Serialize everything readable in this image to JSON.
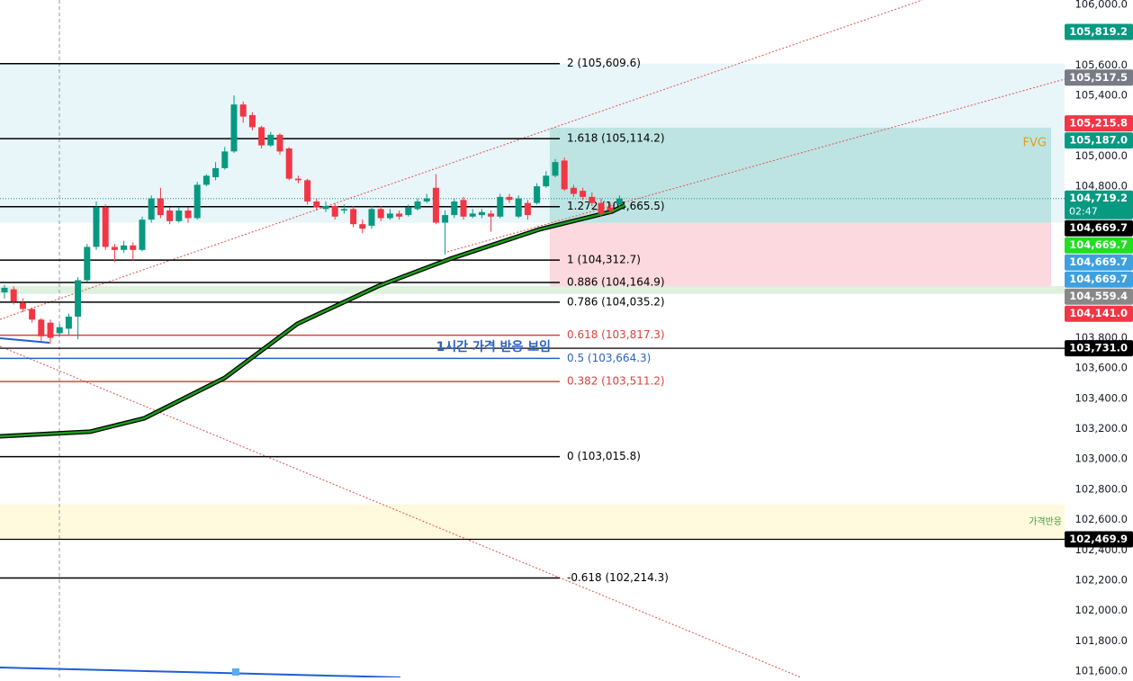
{
  "chart_data": {
    "type": "candlestick",
    "up_color": "#089981",
    "down_color": "#f23645",
    "ylim": [
      101600,
      106000
    ],
    "yticks": [
      {
        "value": 106000,
        "label": "106,000.0"
      },
      {
        "value": 105600,
        "label": "105,600.0"
      },
      {
        "value": 105400,
        "label": "105,400.0"
      },
      {
        "value": 105000,
        "label": "105,000.0"
      },
      {
        "value": 104800,
        "label": "104,800.0"
      },
      {
        "value": 103800,
        "label": "103,800.0"
      },
      {
        "value": 103600,
        "label": "103,600.0"
      },
      {
        "value": 103400,
        "label": "103,400.0"
      },
      {
        "value": 103200,
        "label": "103,200.0"
      },
      {
        "value": 103000,
        "label": "103,000.0"
      },
      {
        "value": 102800,
        "label": "102,800.0"
      },
      {
        "value": 102600,
        "label": "102,600.0"
      },
      {
        "value": 102400,
        "label": "102,400.0"
      },
      {
        "value": 102200,
        "label": "102,200.0"
      },
      {
        "value": 102000,
        "label": "102,000.0"
      },
      {
        "value": 101800,
        "label": "101,800.0"
      },
      {
        "value": 101600,
        "label": "101,600.0"
      }
    ],
    "candles": {
      "open": [
        104100,
        104120,
        104030,
        103990,
        103920,
        103900,
        103830,
        103860,
        103940,
        104180,
        104400,
        104660,
        104400,
        104380,
        104410,
        104380,
        104580,
        104720,
        104640,
        104570,
        104640,
        104590,
        104810,
        104860,
        104920,
        105030,
        105340,
        105270,
        105190,
        105070,
        105140,
        105050,
        104850,
        104840,
        104700,
        104650,
        104670,
        104640,
        104650,
        104550,
        104540,
        104650,
        104590,
        104620,
        104610,
        104650,
        104700,
        104790,
        104560,
        104610,
        104710,
        104600,
        104610,
        104620,
        104600,
        104730,
        104600,
        104690,
        104690,
        104800,
        104870,
        104970,
        104790,
        104770,
        104730,
        104690,
        104660,
        104680
      ],
      "high": [
        104150,
        104140,
        104060,
        104000,
        103930,
        103920,
        103890,
        103960,
        104200,
        104420,
        104700,
        104680,
        104420,
        104440,
        104430,
        104600,
        104740,
        104790,
        104660,
        104660,
        104660,
        104830,
        104880,
        104960,
        105060,
        105400,
        105360,
        105290,
        105200,
        105160,
        105150,
        105060,
        104870,
        104850,
        104720,
        104700,
        104690,
        104680,
        104670,
        104580,
        104670,
        104670,
        104650,
        104640,
        104680,
        104720,
        104750,
        104880,
        104640,
        104720,
        104730,
        104650,
        104650,
        104640,
        104750,
        104750,
        104740,
        104710,
        104820,
        104900,
        104980,
        104990,
        104810,
        104790,
        104760,
        104720,
        104690,
        104740
      ],
      "low": [
        104060,
        104020,
        103970,
        103900,
        103780,
        103760,
        103810,
        103820,
        103790,
        104170,
        104380,
        104380,
        104300,
        104360,
        104310,
        104370,
        104560,
        104590,
        104550,
        104560,
        104560,
        104580,
        104800,
        104840,
        104910,
        105020,
        105220,
        105170,
        105050,
        105060,
        105010,
        104840,
        104820,
        104680,
        104640,
        104630,
        104580,
        104620,
        104530,
        104490,
        104520,
        104570,
        104580,
        104580,
        104600,
        104640,
        104690,
        104550,
        104350,
        104590,
        104580,
        104590,
        104590,
        104500,
        104590,
        104690,
        104590,
        104580,
        104680,
        104790,
        104860,
        104770,
        104730,
        104710,
        104670,
        104600,
        104620,
        104660
      ],
      "close": [
        104130,
        104040,
        103990,
        103920,
        103810,
        103800,
        103870,
        103940,
        104180,
        104400,
        104660,
        104400,
        104380,
        104410,
        104380,
        104580,
        104720,
        104610,
        104570,
        104640,
        104590,
        104810,
        104870,
        104920,
        105030,
        105340,
        105260,
        105190,
        105070,
        105140,
        105030,
        104850,
        104840,
        104700,
        104660,
        104670,
        104600,
        104650,
        104550,
        104520,
        104650,
        104590,
        104620,
        104600,
        104660,
        104700,
        104720,
        104560,
        104610,
        104700,
        104600,
        104620,
        104630,
        104600,
        104730,
        104710,
        104720,
        104610,
        104800,
        104870,
        104960,
        104780,
        104750,
        104730,
        104690,
        104620,
        104640,
        104719.2
      ]
    },
    "ema": {
      "color": "#1a9e1a",
      "x": [
        -0.5,
        9.3,
        15.2,
        24,
        31.9,
        40.7,
        48.5,
        58.3,
        66.2,
        67.6
      ],
      "values": [
        103150,
        103180,
        103268,
        103536,
        103892,
        104141,
        104320,
        104516,
        104634,
        104676
      ]
    },
    "zones": [
      {
        "top": 105609.6,
        "bottom": 104559.4,
        "color": "rgba(178,225,240,0.3)"
      },
      {
        "top": 105187.0,
        "bottom": 104559.4,
        "color": "rgba(120,200,185,0.45)",
        "start": 59.4,
        "label": "FVG",
        "label_color": "#d9a020"
      },
      {
        "top": 104559.4,
        "bottom": 104141.0,
        "color": "rgba(247,180,190,0.5)",
        "start": 59.4
      },
      {
        "top": 104141.0,
        "bottom": 104090,
        "color": "rgba(200,230,200,0.6)"
      },
      {
        "top": 102700,
        "bottom": 102469.9,
        "color": "rgba(255,245,200,0.6)",
        "label": "가격반응",
        "label_color": "#3a9a3a"
      }
    ],
    "fib_levels": [
      {
        "value": 105609.6,
        "label": "2 (105,609.6)",
        "color": "#000000"
      },
      {
        "value": 105114.2,
        "label": "1.618 (105,114.2)",
        "color": "#000000"
      },
      {
        "value": 104665.5,
        "label": "1.272 (104,665.5)",
        "color": "#000000"
      },
      {
        "value": 104312.7,
        "label": "1 (104,312.7)",
        "color": "#000000"
      },
      {
        "value": 104164.9,
        "label": "0.886 (104,164.9)",
        "color": "#000000"
      },
      {
        "value": 104035.2,
        "label": "0.786 (104,035.2)",
        "color": "#000000"
      },
      {
        "value": 103817.3,
        "label": "0.618 (103,817.3)",
        "color": "#e04040"
      },
      {
        "value": 103664.3,
        "label": "0.5 (103,664.3)",
        "color": "#2a62c4"
      },
      {
        "value": 103511.2,
        "label": "0.382 (103,511.2)",
        "color": "#e04040"
      },
      {
        "value": 103015.8,
        "label": "0 (103,015.8)",
        "color": "#000000"
      },
      {
        "value": 102214.3,
        "label": "-0.618 (102,214.3)",
        "color": "#000000"
      }
    ],
    "hlines": [
      103731.0,
      102469.9
    ],
    "annotation": {
      "text": "1시간 가격 반응 보임",
      "value": 103731.0,
      "color": "#2a62c4"
    },
    "price_tags": [
      {
        "value": 105819.2,
        "label": "105,819.2",
        "color": "#089981"
      },
      {
        "value": 105517.5,
        "label": "105,517.5",
        "color": "#787b86"
      },
      {
        "value": 105215.8,
        "label": "105,215.8",
        "color": "#f23645"
      },
      {
        "value": 105187.0,
        "label": "105,187.0",
        "color": "#089981"
      },
      {
        "value": 104719.2,
        "label": "104,719.2",
        "sub": "02:47",
        "color": "#089981"
      },
      {
        "value": 104669.7,
        "label": "104,669.7",
        "color": "#000000"
      },
      {
        "value": 104669.7,
        "label": "104,669.7",
        "color": "#22dd22"
      },
      {
        "value": 104669.7,
        "label": "104,669.7",
        "color": "#3fa0e0"
      },
      {
        "value": 104669.7,
        "label": "104,669.7",
        "color": "#3fa0e0"
      },
      {
        "value": 104559.4,
        "label": "104,559.4",
        "color": "#888888"
      },
      {
        "value": 104141.0,
        "label": "104,141.0",
        "color": "#f23645"
      },
      {
        "value": 103731.0,
        "label": "103,731.0",
        "color": "#000000"
      },
      {
        "value": 102469.9,
        "label": "102,469.9",
        "color": "#000000"
      }
    ]
  }
}
